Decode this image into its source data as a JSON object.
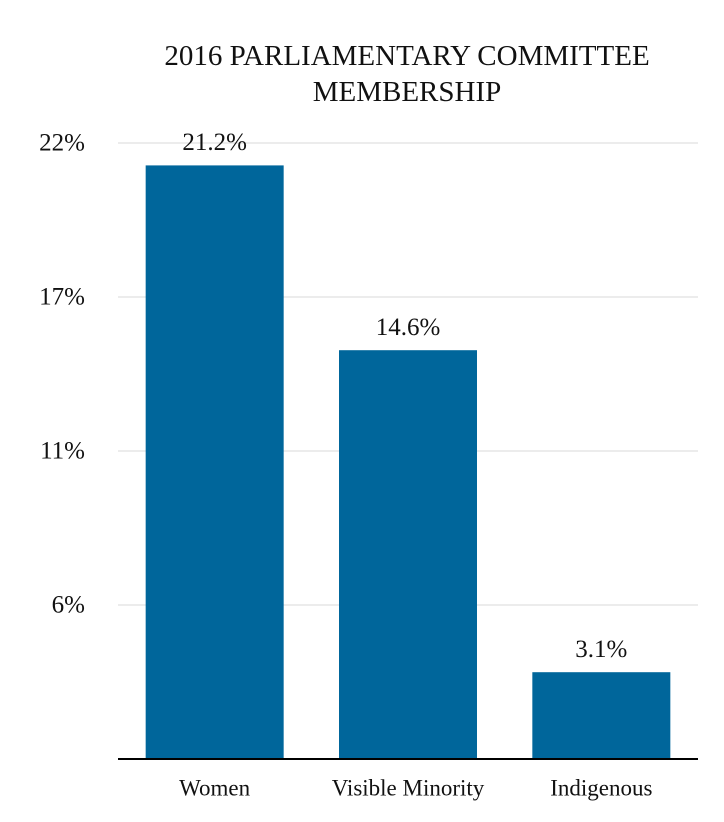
{
  "chart_data": {
    "type": "bar",
    "title": "2016 PARLIAMENTARY COMMITTEE MEMBERSHIP",
    "categories": [
      "Women",
      "Visible Minority",
      "Indigenous"
    ],
    "values": [
      21.2,
      14.6,
      3.1
    ],
    "value_labels": [
      "21.2%",
      "14.6%",
      "3.1%"
    ],
    "color": "#00669b",
    "ylim": [
      0,
      22
    ],
    "yticks": [
      {
        "value": 5.5,
        "label": "6%"
      },
      {
        "value": 11,
        "label": "11%"
      },
      {
        "value": 16.5,
        "label": "17%"
      },
      {
        "value": 22,
        "label": "22%"
      }
    ],
    "grid": true
  }
}
